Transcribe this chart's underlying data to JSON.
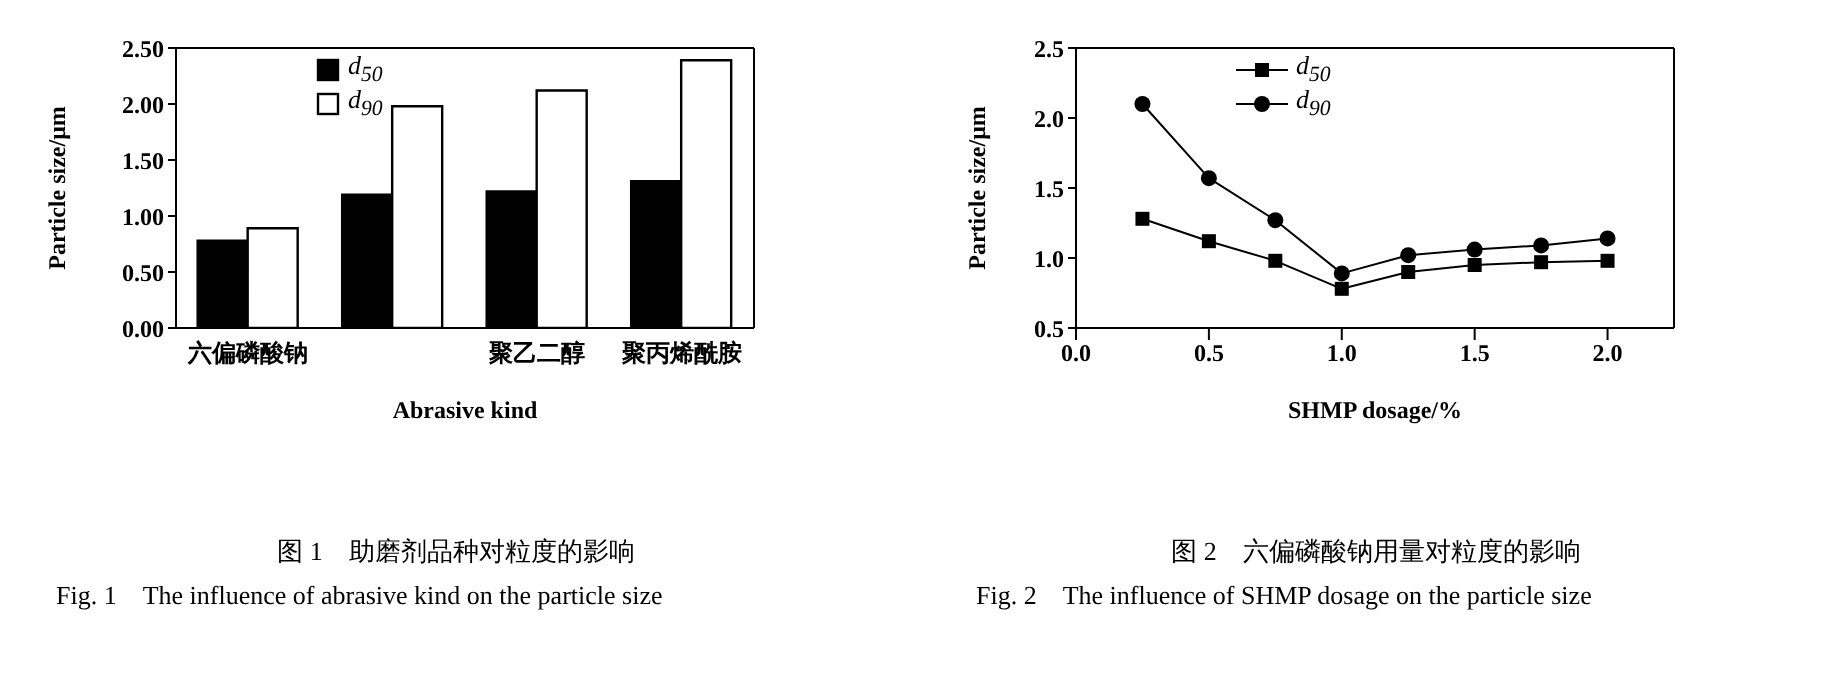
{
  "chart_data": [
    {
      "type": "bar",
      "categories": [
        "六偏磷酸钠",
        null,
        "聚乙二醇",
        "聚丙烯酰胺"
      ],
      "xlabel": "Abrasive kind",
      "ylabel": "Particle size/μm",
      "series": [
        {
          "name": "d$_{50}$",
          "color": "#000000",
          "values": [
            0.78,
            1.19,
            1.22,
            1.31
          ]
        },
        {
          "name": "d$_{90}$",
          "color": "#ffffff",
          "values": [
            0.89,
            1.98,
            2.12,
            2.39
          ]
        }
      ],
      "ylim": [
        0,
        2.5
      ],
      "yticks": [
        {
          "value": 0,
          "label": "0.00"
        },
        {
          "value": 0.5,
          "label": "0.50"
        },
        {
          "value": 1,
          "label": "1.00"
        },
        {
          "value": 1.5,
          "label": "1.50"
        },
        {
          "value": 2,
          "label": "2.00"
        },
        {
          "value": 2.5,
          "label": "2.50"
        }
      ],
      "grid": false,
      "legend": "top left",
      "annotations": [
        "图 1　助磨剂品种对粒度的影响",
        "Fig. 1　The influence of abrasive kind on the particle size"
      ]
    },
    {
      "type": "line",
      "x": [
        0.25,
        0.5,
        0.75,
        1.0,
        1.25,
        1.5,
        1.75,
        2.0
      ],
      "xlabel": "SHMP dosage/%",
      "ylabel": "Particle size/μm",
      "series": [
        {
          "name": "d$_{50}$",
          "color": "#000000",
          "marker": "square",
          "values": [
            1.28,
            1.12,
            0.98,
            0.78,
            0.9,
            0.95,
            0.97,
            0.98
          ]
        },
        {
          "name": "d$_{90}$",
          "color": "#000000",
          "marker": "circle",
          "values": [
            2.1,
            1.57,
            1.27,
            0.89,
            1.02,
            1.06,
            1.09,
            1.14
          ]
        }
      ],
      "xlim": [
        0,
        2.25
      ],
      "xticks": [
        {
          "value": 0,
          "label": "0.0"
        },
        {
          "value": 0.5,
          "label": "0.5"
        },
        {
          "value": 1,
          "label": "1.0"
        },
        {
          "value": 1.5,
          "label": "1.5"
        },
        {
          "value": 2,
          "label": "2.0"
        }
      ],
      "ylim": [
        0.5,
        2.5
      ],
      "yticks": [
        {
          "value": 0.5,
          "label": "0.5"
        },
        {
          "value": 1,
          "label": "1.0"
        },
        {
          "value": 1.5,
          "label": "1.5"
        },
        {
          "value": 2,
          "label": "2.0"
        },
        {
          "value": 2.5,
          "label": "2.5"
        }
      ],
      "grid": false,
      "legend": "top left",
      "line_style": "solid",
      "annotations": [
        "图 2　六偏磷酸钠用量对粒度的影响",
        "Fig. 2　The influence of SHMP dosage on the particle size"
      ]
    }
  ]
}
